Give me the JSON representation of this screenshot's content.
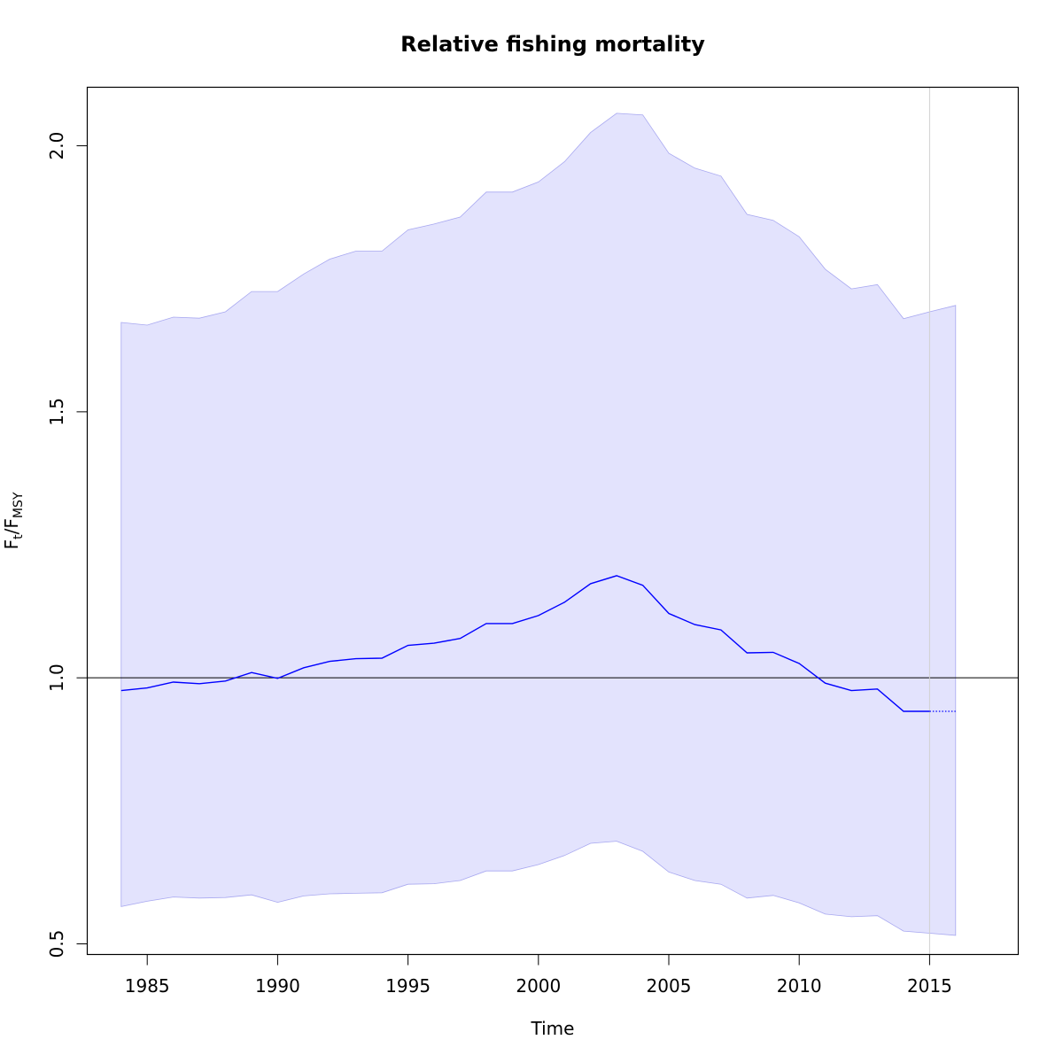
{
  "chart_data": {
    "type": "line",
    "title": "Relative fishing mortality",
    "xlabel": "Time",
    "ylabel": {
      "main": "F",
      "sub_t": "t",
      "sep": "/",
      "main2": "F",
      "sub_msy": "MSY"
    },
    "xlim": [
      1982.7,
      2018.4
    ],
    "ylim": [
      0.48,
      2.11
    ],
    "xticks": [
      1985,
      1990,
      1995,
      2000,
      2005,
      2010,
      2015
    ],
    "yticks": [
      0.5,
      1.0,
      1.5,
      2.0
    ],
    "ytick_labels": [
      "0.5",
      "1.0",
      "1.5",
      "2.0"
    ],
    "grid": false,
    "reference_line_y": 1.0,
    "reference_line_x": 2015,
    "colors": {
      "estimate_line": "#0000ff",
      "ci_fill": "#e3e3fd",
      "ci_edge": "#a8a8f0",
      "reference_line": "#000000",
      "vertical_line": "#d0d0d0"
    },
    "x": [
      1984,
      1985,
      1986,
      1987,
      1988,
      1989,
      1990,
      1991,
      1992,
      1993,
      1994,
      1995,
      1996,
      1997,
      1998,
      1999,
      2000,
      2001,
      2002,
      2003,
      2004,
      2005,
      2006,
      2007,
      2008,
      2009,
      2010,
      2011,
      2012,
      2013,
      2014,
      2015,
      2016
    ],
    "series": [
      {
        "values": [
          0.976,
          0.981,
          0.992,
          0.989,
          0.994,
          1.01,
          0.999,
          1.019,
          1.031,
          1.036,
          1.037,
          1.061,
          1.065,
          1.074,
          1.102,
          1.102,
          1.117,
          1.142,
          1.177,
          1.192,
          1.174,
          1.121,
          1.1,
          1.09,
          1.047,
          1.048,
          1.027,
          0.99,
          0.976,
          0.979,
          0.937,
          0.937,
          0.937
        ],
        "projection_from": 2015
      },
      {
        "lower": [
          0.57,
          0.58,
          0.588,
          0.586,
          0.587,
          0.592,
          0.578,
          0.59,
          0.594,
          0.595,
          0.596,
          0.612,
          0.613,
          0.619,
          0.637,
          0.637,
          0.649,
          0.666,
          0.689,
          0.693,
          0.674,
          0.635,
          0.619,
          0.612,
          0.586,
          0.591,
          0.577,
          0.556,
          0.551,
          0.553,
          0.524,
          0.52,
          0.516
        ],
        "upper": [
          1.668,
          1.663,
          1.678,
          1.676,
          1.688,
          1.726,
          1.726,
          1.759,
          1.787,
          1.802,
          1.802,
          1.842,
          1.853,
          1.866,
          1.913,
          1.913,
          1.932,
          1.97,
          2.025,
          2.061,
          2.058,
          1.986,
          1.958,
          1.943,
          1.871,
          1.86,
          1.829,
          1.768,
          1.731,
          1.739,
          1.675,
          1.688,
          1.7
        ]
      }
    ]
  }
}
